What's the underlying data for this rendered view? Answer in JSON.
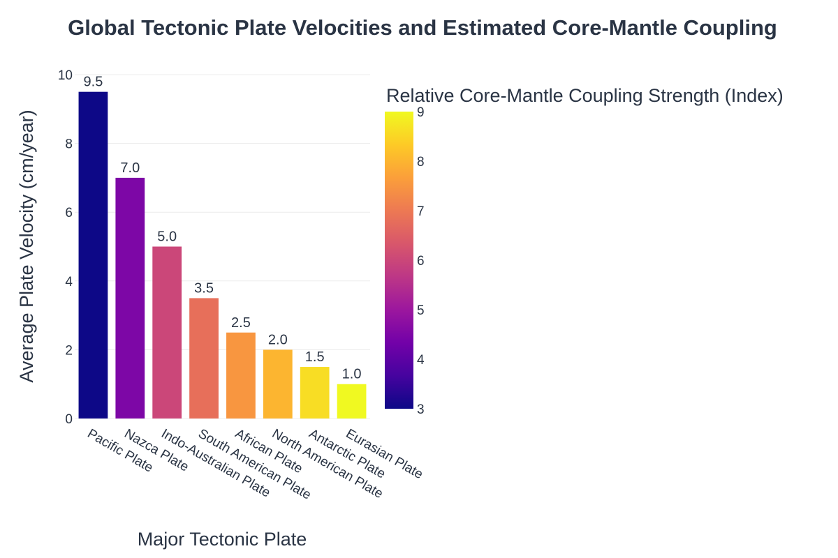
{
  "chart_data": {
    "type": "bar",
    "title": "Global Tectonic Plate Velocities and Estimated Core-Mantle Coupling",
    "xlabel": "Major Tectonic Plate",
    "ylabel": "Average Plate Velocity (cm/year)",
    "ylim": [
      0,
      10
    ],
    "yticks": [
      0,
      2,
      4,
      6,
      8,
      10
    ],
    "grid": true,
    "categories": [
      "Pacific Plate",
      "Nazca Plate",
      "Indo-Australian Plate",
      "South American Plate",
      "African Plate",
      "North American Plate",
      "Antarctic Plate",
      "Eurasian Plate"
    ],
    "values": [
      9.5,
      7.0,
      5.0,
      3.5,
      2.5,
      2.0,
      1.5,
      1.0
    ],
    "value_labels": [
      "9.5",
      "7.0",
      "5.0",
      "3.5",
      "2.5",
      "2.0",
      "1.5",
      "1.0"
    ],
    "color_values": [
      3,
      4.5,
      6,
      6.8,
      7.5,
      8,
      8.6,
      9
    ],
    "colorbar": {
      "title": "Relative Core-Mantle Coupling Strength (Index)",
      "range": [
        3,
        9
      ],
      "ticks": [
        3,
        4,
        5,
        6,
        7,
        8,
        9
      ],
      "colorscale": "plasma",
      "stops": [
        "#0d0887",
        "#46039f",
        "#7201a8",
        "#9c179e",
        "#bd3786",
        "#d8576b",
        "#ed7953",
        "#fb9f3a",
        "#fdca26",
        "#f0f921"
      ]
    }
  }
}
